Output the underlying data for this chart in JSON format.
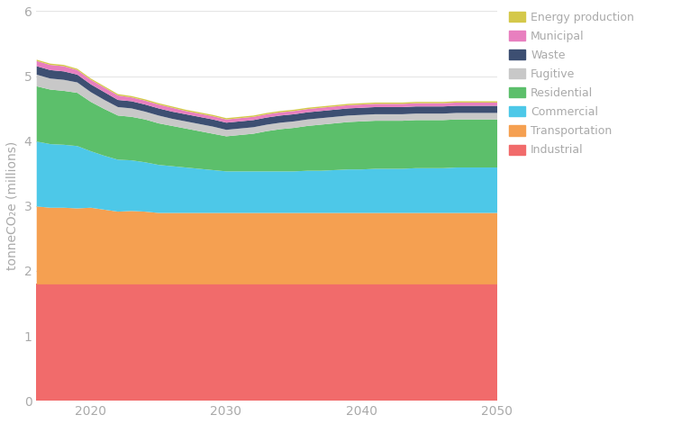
{
  "years": [
    2016,
    2017,
    2018,
    2019,
    2020,
    2021,
    2022,
    2023,
    2024,
    2025,
    2026,
    2027,
    2028,
    2029,
    2030,
    2031,
    2032,
    2033,
    2034,
    2035,
    2036,
    2037,
    2038,
    2039,
    2040,
    2041,
    2042,
    2043,
    2044,
    2045,
    2046,
    2047,
    2048,
    2049,
    2050
  ],
  "series": {
    "Industrial": [
      1.8,
      1.8,
      1.8,
      1.8,
      1.8,
      1.8,
      1.8,
      1.8,
      1.8,
      1.8,
      1.8,
      1.8,
      1.8,
      1.8,
      1.8,
      1.8,
      1.8,
      1.8,
      1.8,
      1.8,
      1.8,
      1.8,
      1.8,
      1.8,
      1.8,
      1.8,
      1.8,
      1.8,
      1.8,
      1.8,
      1.8,
      1.8,
      1.8,
      1.8,
      1.8
    ],
    "Transportation": [
      1.2,
      1.18,
      1.18,
      1.17,
      1.18,
      1.15,
      1.12,
      1.13,
      1.12,
      1.1,
      1.1,
      1.1,
      1.1,
      1.1,
      1.1,
      1.1,
      1.1,
      1.1,
      1.1,
      1.1,
      1.1,
      1.1,
      1.1,
      1.1,
      1.1,
      1.1,
      1.1,
      1.1,
      1.1,
      1.1,
      1.1,
      1.1,
      1.1,
      1.1,
      1.1
    ],
    "Commercial": [
      1.0,
      0.98,
      0.97,
      0.96,
      0.87,
      0.83,
      0.8,
      0.78,
      0.76,
      0.74,
      0.72,
      0.7,
      0.68,
      0.66,
      0.64,
      0.64,
      0.64,
      0.64,
      0.64,
      0.64,
      0.65,
      0.65,
      0.66,
      0.67,
      0.67,
      0.68,
      0.68,
      0.68,
      0.69,
      0.69,
      0.69,
      0.7,
      0.7,
      0.7,
      0.7
    ],
    "Residential": [
      0.85,
      0.84,
      0.83,
      0.82,
      0.76,
      0.72,
      0.68,
      0.67,
      0.66,
      0.64,
      0.62,
      0.6,
      0.58,
      0.56,
      0.54,
      0.56,
      0.58,
      0.62,
      0.65,
      0.67,
      0.69,
      0.71,
      0.72,
      0.73,
      0.74,
      0.74,
      0.74,
      0.74,
      0.74,
      0.74,
      0.74,
      0.74,
      0.74,
      0.74,
      0.74
    ],
    "Fugitive": [
      0.18,
      0.17,
      0.17,
      0.16,
      0.15,
      0.14,
      0.13,
      0.13,
      0.12,
      0.12,
      0.11,
      0.11,
      0.11,
      0.11,
      0.1,
      0.1,
      0.1,
      0.1,
      0.1,
      0.1,
      0.1,
      0.1,
      0.1,
      0.1,
      0.1,
      0.1,
      0.1,
      0.1,
      0.1,
      0.1,
      0.1,
      0.1,
      0.1,
      0.1,
      0.1
    ],
    "Waste": [
      0.13,
      0.13,
      0.13,
      0.12,
      0.12,
      0.12,
      0.11,
      0.11,
      0.11,
      0.11,
      0.11,
      0.11,
      0.11,
      0.11,
      0.11,
      0.11,
      0.11,
      0.11,
      0.11,
      0.11,
      0.11,
      0.11,
      0.11,
      0.11,
      0.11,
      0.11,
      0.11,
      0.11,
      0.11,
      0.11,
      0.11,
      0.11,
      0.11,
      0.11,
      0.11
    ],
    "Municipal": [
      0.08,
      0.08,
      0.08,
      0.07,
      0.07,
      0.07,
      0.07,
      0.06,
      0.06,
      0.06,
      0.06,
      0.05,
      0.05,
      0.05,
      0.05,
      0.05,
      0.05,
      0.05,
      0.05,
      0.05,
      0.05,
      0.05,
      0.05,
      0.05,
      0.05,
      0.05,
      0.05,
      0.05,
      0.05,
      0.05,
      0.05,
      0.05,
      0.05,
      0.05,
      0.05
    ],
    "Energy production": [
      0.02,
      0.02,
      0.02,
      0.02,
      0.02,
      0.02,
      0.02,
      0.02,
      0.02,
      0.02,
      0.02,
      0.02,
      0.02,
      0.02,
      0.02,
      0.02,
      0.02,
      0.02,
      0.02,
      0.02,
      0.02,
      0.02,
      0.02,
      0.02,
      0.02,
      0.02,
      0.02,
      0.02,
      0.02,
      0.02,
      0.02,
      0.02,
      0.02,
      0.02,
      0.02
    ]
  },
  "colors": {
    "Industrial": "#f16b6b",
    "Transportation": "#f5a051",
    "Commercial": "#4dc8e8",
    "Residential": "#5cbf6b",
    "Fugitive": "#c8c8c8",
    "Waste": "#3d4f72",
    "Municipal": "#e87fbf",
    "Energy production": "#d4c84a"
  },
  "ylabel": "tonneCO₂e (millions)",
  "ylim": [
    0,
    6
  ],
  "yticks": [
    0,
    1,
    2,
    3,
    4,
    5,
    6
  ],
  "xlim": [
    2016,
    2050
  ],
  "xticks": [
    2020,
    2030,
    2040,
    2050
  ],
  "legend_order": [
    "Energy production",
    "Municipal",
    "Waste",
    "Fugitive",
    "Residential",
    "Commercial",
    "Transportation",
    "Industrial"
  ],
  "background_color": "#ffffff",
  "text_color": "#aaaaaa",
  "grid_color": "#e5e5e5",
  "figsize": [
    7.66,
    4.71
  ],
  "dpi": 100
}
